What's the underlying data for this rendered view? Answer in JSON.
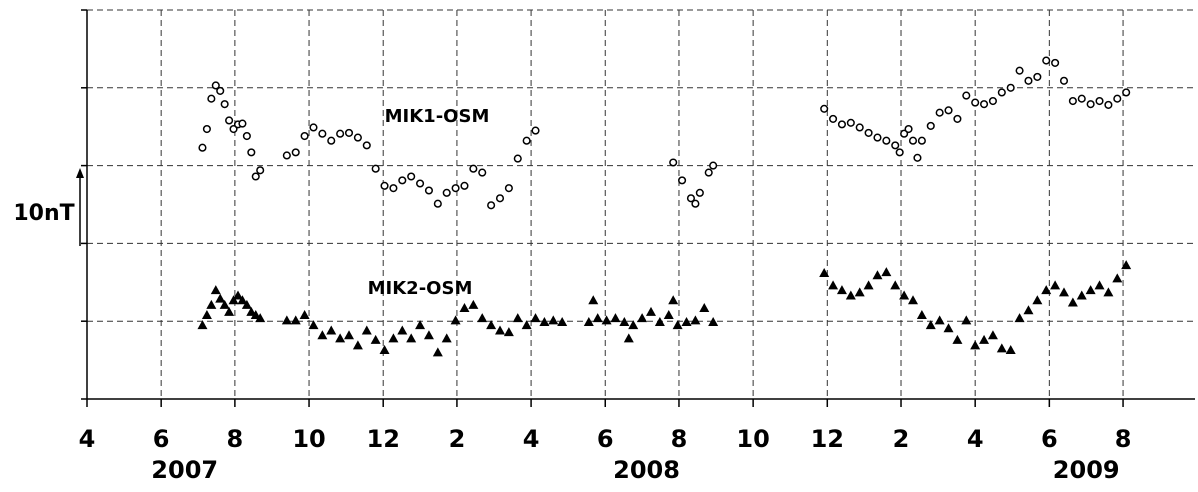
{
  "chart_data": {
    "type": "scatter",
    "y_label": "10nT",
    "xlim": [
      2007.25,
      2009.745
    ],
    "ylim": [
      0,
      50
    ],
    "yticks": [
      0,
      10,
      20,
      30,
      40,
      50
    ],
    "xticks": [
      {
        "value": 2007.25,
        "label": "4"
      },
      {
        "value": 2007.417,
        "label": "6"
      },
      {
        "value": 2007.583,
        "label": "8"
      },
      {
        "value": 2007.75,
        "label": "10"
      },
      {
        "value": 2007.917,
        "label": "12"
      },
      {
        "value": 2008.083,
        "label": "2"
      },
      {
        "value": 2008.25,
        "label": "4"
      },
      {
        "value": 2008.417,
        "label": "6"
      },
      {
        "value": 2008.583,
        "label": "8"
      },
      {
        "value": 2008.75,
        "label": "10"
      },
      {
        "value": 2008.917,
        "label": "12"
      },
      {
        "value": 2009.083,
        "label": "2"
      },
      {
        "value": 2009.25,
        "label": "4"
      },
      {
        "value": 2009.417,
        "label": "6"
      },
      {
        "value": 2009.583,
        "label": "8"
      }
    ],
    "year_labels": [
      {
        "value": 2007.47,
        "label": "2007"
      },
      {
        "value": 2008.51,
        "label": "2008"
      },
      {
        "value": 2009.5,
        "label": "2009"
      }
    ],
    "grid": true,
    "series": [
      {
        "name": "MIK1-OSM",
        "marker": "circle",
        "color": "#000000",
        "x": [
          2007.51,
          2007.52,
          2007.53,
          2007.54,
          2007.55,
          2007.56,
          2007.57,
          2007.58,
          2007.59,
          2007.6,
          2007.61,
          2007.62,
          2007.63,
          2007.64,
          2007.7,
          2007.72,
          2007.74,
          2007.76,
          2007.78,
          2007.8,
          2007.82,
          2007.84,
          2007.86,
          2007.88,
          2007.9,
          2007.92,
          2007.94,
          2007.96,
          2007.98,
          2008.0,
          2008.02,
          2008.04,
          2008.06,
          2008.08,
          2008.1,
          2008.12,
          2008.14,
          2008.16,
          2008.18,
          2008.2,
          2008.22,
          2008.24,
          2008.26,
          2008.57,
          2008.59,
          2008.61,
          2008.62,
          2008.63,
          2008.65,
          2008.66,
          2008.91,
          2008.93,
          2008.95,
          2008.97,
          2008.99,
          2009.01,
          2009.03,
          2009.05,
          2009.07,
          2009.08,
          2009.09,
          2009.1,
          2009.11,
          2009.12,
          2009.13,
          2009.15,
          2009.17,
          2009.19,
          2009.21,
          2009.23,
          2009.25,
          2009.27,
          2009.29,
          2009.31,
          2009.33,
          2009.35,
          2009.37,
          2009.39,
          2009.41,
          2009.43,
          2009.45,
          2009.47,
          2009.49,
          2009.51,
          2009.53,
          2009.55,
          2009.57,
          2009.59
        ],
        "values": [
          32.3,
          34.7,
          38.6,
          40.3,
          39.6,
          37.9,
          35.8,
          34.7,
          35.3,
          35.4,
          33.8,
          31.7,
          28.6,
          29.4,
          31.3,
          31.7,
          33.8,
          34.9,
          34.1,
          33.2,
          34.1,
          34.2,
          33.6,
          32.6,
          29.6,
          27.4,
          27.1,
          28.1,
          28.6,
          27.7,
          26.8,
          25.1,
          26.5,
          27.1,
          27.4,
          29.6,
          29.1,
          24.9,
          25.8,
          27.1,
          30.9,
          33.2,
          34.5,
          30.4,
          28.1,
          25.8,
          25.1,
          26.5,
          29.1,
          30.0,
          37.3,
          36.0,
          35.3,
          35.5,
          34.9,
          34.2,
          33.6,
          33.2,
          32.6,
          31.7,
          34.1,
          34.7,
          33.2,
          31.0,
          33.2,
          35.1,
          36.8,
          37.1,
          36.0,
          39.0,
          38.1,
          37.9,
          38.3,
          39.4,
          40.0,
          42.2,
          40.9,
          41.4,
          43.5,
          43.2,
          40.9,
          38.3,
          38.6,
          37.9,
          38.3,
          37.8,
          38.6,
          39.4
        ]
      },
      {
        "name": "MIK2-OSM",
        "marker": "triangle",
        "color": "#000000",
        "x": [
          2007.51,
          2007.52,
          2007.53,
          2007.54,
          2007.55,
          2007.56,
          2007.57,
          2007.58,
          2007.59,
          2007.6,
          2007.61,
          2007.62,
          2007.63,
          2007.64,
          2007.7,
          2007.72,
          2007.74,
          2007.76,
          2007.78,
          2007.8,
          2007.82,
          2007.84,
          2007.86,
          2007.88,
          2007.9,
          2007.92,
          2007.94,
          2007.96,
          2007.98,
          2008.0,
          2008.02,
          2008.04,
          2008.06,
          2008.08,
          2008.1,
          2008.12,
          2008.14,
          2008.16,
          2008.18,
          2008.2,
          2008.22,
          2008.24,
          2008.26,
          2008.28,
          2008.3,
          2008.32,
          2008.38,
          2008.39,
          2008.4,
          2008.42,
          2008.44,
          2008.46,
          2008.47,
          2008.48,
          2008.5,
          2008.52,
          2008.54,
          2008.56,
          2008.57,
          2008.58,
          2008.6,
          2008.62,
          2008.64,
          2008.66,
          2008.91,
          2008.93,
          2008.95,
          2008.97,
          2008.99,
          2009.01,
          2009.03,
          2009.05,
          2009.07,
          2009.09,
          2009.11,
          2009.13,
          2009.15,
          2009.17,
          2009.19,
          2009.21,
          2009.23,
          2009.25,
          2009.27,
          2009.29,
          2009.31,
          2009.33,
          2009.35,
          2009.37,
          2009.39,
          2009.41,
          2009.43,
          2009.45,
          2009.47,
          2009.49,
          2009.51,
          2009.53,
          2009.55,
          2009.57,
          2009.59
        ],
        "values": [
          9.5,
          10.8,
          12.1,
          14.0,
          12.9,
          12.1,
          11.2,
          12.7,
          13.3,
          12.7,
          12.1,
          11.2,
          10.8,
          10.4,
          10.1,
          10.1,
          10.8,
          9.5,
          8.2,
          8.8,
          7.8,
          8.2,
          6.9,
          8.8,
          7.6,
          6.3,
          7.8,
          8.8,
          7.8,
          9.5,
          8.2,
          6.0,
          7.8,
          10.1,
          11.7,
          12.1,
          10.4,
          9.5,
          8.8,
          8.6,
          10.4,
          9.5,
          10.4,
          9.9,
          10.1,
          9.9,
          9.9,
          12.7,
          10.4,
          10.1,
          10.4,
          9.9,
          7.8,
          9.5,
          10.4,
          11.2,
          9.9,
          10.8,
          12.7,
          9.5,
          9.9,
          10.1,
          11.7,
          9.9,
          16.2,
          14.6,
          14.0,
          13.3,
          13.7,
          14.6,
          15.9,
          16.3,
          14.6,
          13.3,
          12.7,
          10.8,
          9.5,
          10.1,
          9.1,
          7.6,
          10.1,
          6.9,
          7.6,
          8.2,
          6.5,
          6.3,
          10.4,
          11.4,
          12.7,
          14.0,
          14.6,
          13.7,
          12.4,
          13.3,
          14.0,
          14.6,
          13.7,
          15.5,
          17.2
        ]
      }
    ]
  }
}
